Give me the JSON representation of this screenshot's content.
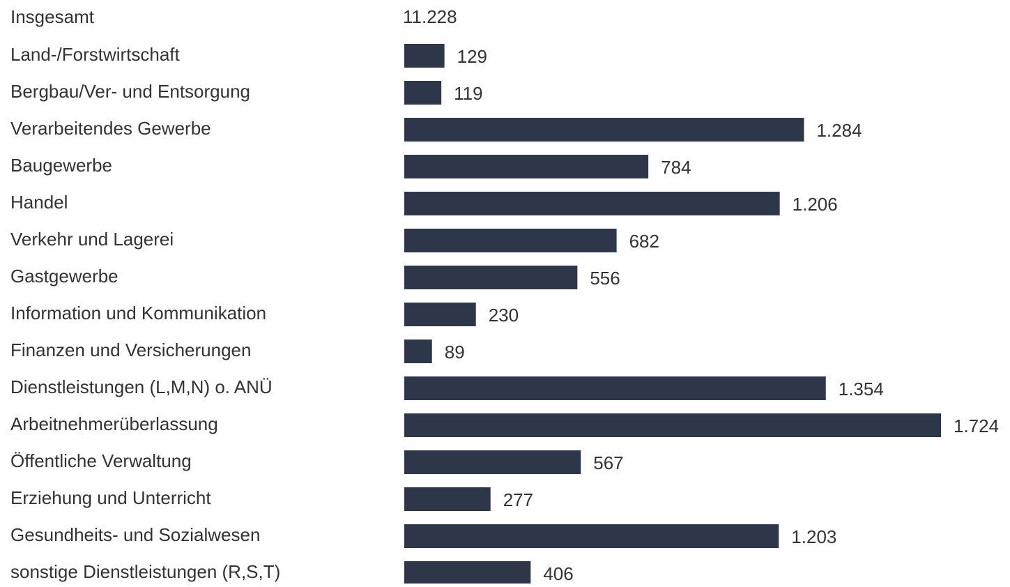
{
  "chart_data": {
    "type": "bar",
    "orientation": "horizontal",
    "color": "#2e3649",
    "total": {
      "name": "Insgesamt",
      "value": 11228,
      "value_label": "11.228"
    },
    "categories": [
      "Land-/Forstwirtschaft",
      "Bergbau/Ver- und Entsorgung",
      "Verarbeitendes Gewerbe",
      "Baugewerbe",
      "Handel",
      "Verkehr und Lagerei",
      "Gastgewerbe",
      "Information und Kommunikation",
      "Finanzen und Versicherungen",
      "Dienstleistungen (L,M,N) o. ANÜ",
      "Arbeitnehmerüberlassung",
      "Öffentliche Verwaltung",
      "Erziehung und Unterricht",
      "Gesundheits- und Sozialwesen",
      "sonstige Dienstleistungen (R,S,T)"
    ],
    "values": [
      129,
      119,
      1284,
      784,
      1206,
      682,
      556,
      230,
      89,
      1354,
      1724,
      567,
      277,
      1203,
      406
    ],
    "value_labels": [
      "129",
      "119",
      "1.284",
      "784",
      "1.206",
      "682",
      "556",
      "230",
      "89",
      "1.354",
      "1.724",
      "567",
      "277",
      "1.203",
      "406"
    ]
  }
}
